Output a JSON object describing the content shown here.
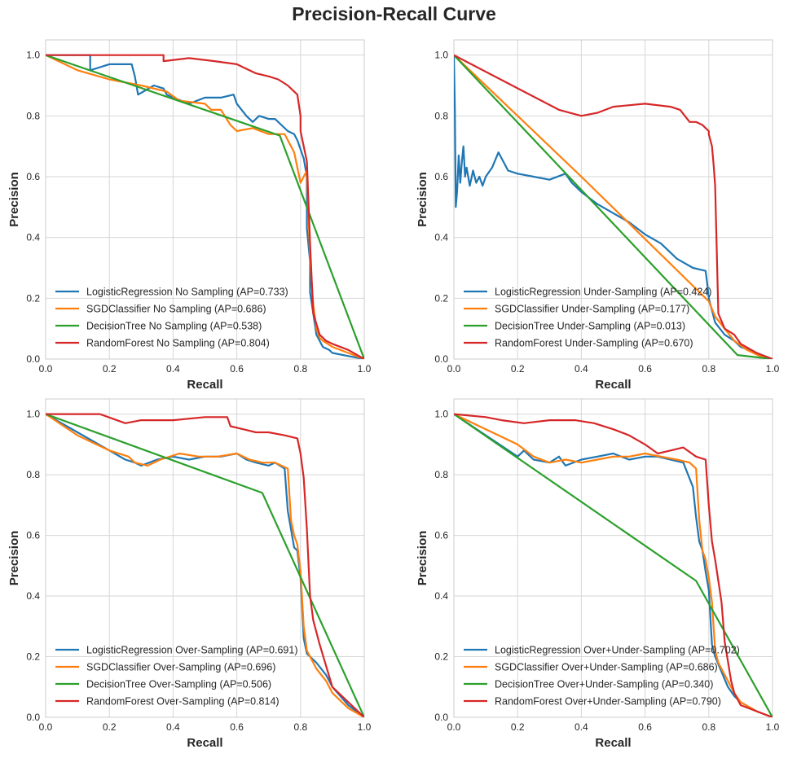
{
  "title": "Precision-Recall Curve",
  "colors": {
    "LogisticRegression": "#1f77b4",
    "SGDClassifier": "#ff7f0e",
    "DecisionTree": "#2ca02c",
    "RandomForest": "#d62728"
  },
  "chart_data": [
    {
      "type": "line",
      "xlabel": "Recall",
      "ylabel": "Precision",
      "xlim": [
        0,
        1
      ],
      "ylim": [
        0,
        1.05
      ],
      "xticks": [
        "0.0",
        "0.2",
        "0.4",
        "0.6",
        "0.8",
        "1.0"
      ],
      "yticks": [
        "0.0",
        "0.2",
        "0.4",
        "0.6",
        "0.8",
        "1.0"
      ],
      "grid": true,
      "legend": "lower-left",
      "series": [
        {
          "name": "LogisticRegression No Sampling (AP=0.733)",
          "color": "#1f77b4",
          "x": [
            0,
            0.14,
            0.14,
            0.2,
            0.27,
            0.28,
            0.29,
            0.34,
            0.37,
            0.38,
            0.4,
            0.45,
            0.5,
            0.55,
            0.59,
            0.6,
            0.63,
            0.65,
            0.67,
            0.7,
            0.72,
            0.74,
            0.76,
            0.78,
            0.79,
            0.81,
            0.82,
            0.82,
            0.83,
            0.83,
            0.84,
            0.85,
            0.87,
            0.89,
            0.9,
            0.95,
            1.0
          ],
          "y": [
            1.0,
            1.0,
            0.95,
            0.97,
            0.97,
            0.93,
            0.87,
            0.9,
            0.89,
            0.87,
            0.86,
            0.84,
            0.86,
            0.86,
            0.87,
            0.84,
            0.8,
            0.78,
            0.8,
            0.79,
            0.79,
            0.77,
            0.75,
            0.74,
            0.72,
            0.66,
            0.6,
            0.43,
            0.32,
            0.22,
            0.15,
            0.08,
            0.04,
            0.03,
            0.02,
            0.01,
            0.0
          ]
        },
        {
          "name": "SGDClassifier No Sampling (AP=0.686)",
          "color": "#ff7f0e",
          "x": [
            0,
            0.1,
            0.2,
            0.3,
            0.38,
            0.42,
            0.5,
            0.52,
            0.55,
            0.58,
            0.6,
            0.65,
            0.7,
            0.75,
            0.78,
            0.8,
            0.82,
            0.83,
            0.84,
            0.85,
            0.86,
            0.87,
            0.9,
            0.95,
            1.0
          ],
          "y": [
            1.0,
            0.95,
            0.92,
            0.9,
            0.88,
            0.85,
            0.84,
            0.82,
            0.82,
            0.77,
            0.75,
            0.76,
            0.74,
            0.74,
            0.68,
            0.58,
            0.62,
            0.33,
            0.18,
            0.1,
            0.07,
            0.06,
            0.04,
            0.02,
            0.0
          ]
        },
        {
          "name": "DecisionTree No Sampling (AP=0.538)",
          "color": "#2ca02c",
          "x": [
            0,
            0.735,
            1.0
          ],
          "y": [
            1.0,
            0.735,
            0.0
          ]
        },
        {
          "name": "RandomForest No Sampling (AP=0.804)",
          "color": "#d62728",
          "x": [
            0,
            0.37,
            0.37,
            0.45,
            0.53,
            0.6,
            0.66,
            0.7,
            0.73,
            0.76,
            0.79,
            0.8,
            0.8,
            0.82,
            0.83,
            0.84,
            0.86,
            0.88,
            0.9,
            0.95,
            1.0
          ],
          "y": [
            1.0,
            1.0,
            0.98,
            0.99,
            0.98,
            0.97,
            0.94,
            0.93,
            0.92,
            0.9,
            0.87,
            0.8,
            0.75,
            0.65,
            0.38,
            0.15,
            0.08,
            0.06,
            0.05,
            0.03,
            0.0
          ]
        }
      ]
    },
    {
      "type": "line",
      "xlabel": "Recall",
      "ylabel": "Precision",
      "xlim": [
        0,
        1
      ],
      "ylim": [
        0,
        1.05
      ],
      "xticks": [
        "0.0",
        "0.2",
        "0.4",
        "0.6",
        "0.8",
        "1.0"
      ],
      "yticks": [
        "0.0",
        "0.2",
        "0.4",
        "0.6",
        "0.8",
        "1.0"
      ],
      "grid": true,
      "legend": "lower-left",
      "series": [
        {
          "name": "LogisticRegression Under-Sampling (AP=0.424)",
          "color": "#1f77b4",
          "x": [
            0,
            0.003,
            0.006,
            0.01,
            0.015,
            0.02,
            0.025,
            0.03,
            0.035,
            0.04,
            0.05,
            0.06,
            0.07,
            0.08,
            0.09,
            0.1,
            0.12,
            0.14,
            0.16,
            0.17,
            0.2,
            0.25,
            0.3,
            0.35,
            0.37,
            0.4,
            0.45,
            0.5,
            0.55,
            0.6,
            0.65,
            0.7,
            0.75,
            0.79,
            0.795,
            0.8,
            0.82,
            0.85,
            0.88,
            0.9,
            0.95,
            1.0
          ],
          "y": [
            1.0,
            0.82,
            0.5,
            0.55,
            0.67,
            0.58,
            0.65,
            0.7,
            0.6,
            0.63,
            0.57,
            0.62,
            0.58,
            0.6,
            0.57,
            0.6,
            0.63,
            0.68,
            0.64,
            0.62,
            0.61,
            0.6,
            0.59,
            0.61,
            0.58,
            0.55,
            0.51,
            0.48,
            0.45,
            0.41,
            0.38,
            0.33,
            0.3,
            0.29,
            0.25,
            0.2,
            0.12,
            0.08,
            0.06,
            0.04,
            0.02,
            0.0
          ]
        },
        {
          "name": "SGDClassifier Under-Sampling (AP=0.177)",
          "color": "#ff7f0e",
          "x": [
            0,
            0.4,
            0.8,
            0.82,
            0.85,
            0.88,
            0.92,
            0.96,
            1.0
          ],
          "y": [
            1.0,
            0.6,
            0.19,
            0.14,
            0.1,
            0.06,
            0.03,
            0.01,
            0.0
          ]
        },
        {
          "name": "DecisionTree Under-Sampling (AP=0.013)",
          "color": "#2ca02c",
          "x": [
            0,
            0.89,
            1.0
          ],
          "y": [
            1.0,
            0.013,
            0.0
          ]
        },
        {
          "name": "RandomForest Under-Sampling (AP=0.670)",
          "color": "#d62728",
          "x": [
            0,
            0.33,
            0.4,
            0.45,
            0.5,
            0.6,
            0.68,
            0.71,
            0.74,
            0.76,
            0.78,
            0.79,
            0.8,
            0.8,
            0.81,
            0.815,
            0.82,
            0.83,
            0.85,
            0.88,
            0.9,
            0.95,
            1.0
          ],
          "y": [
            1.0,
            0.82,
            0.8,
            0.81,
            0.83,
            0.84,
            0.83,
            0.82,
            0.78,
            0.78,
            0.77,
            0.76,
            0.75,
            0.74,
            0.7,
            0.64,
            0.57,
            0.15,
            0.1,
            0.08,
            0.05,
            0.02,
            0.0
          ]
        }
      ]
    },
    {
      "type": "line",
      "xlabel": "Recall",
      "ylabel": "Precision",
      "xlim": [
        0,
        1
      ],
      "ylim": [
        0,
        1.05
      ],
      "xticks": [
        "0.0",
        "0.2",
        "0.4",
        "0.6",
        "0.8",
        "1.0"
      ],
      "yticks": [
        "0.0",
        "0.2",
        "0.4",
        "0.6",
        "0.8",
        "1.0"
      ],
      "grid": true,
      "legend": "lower-left",
      "series": [
        {
          "name": "LogisticRegression Over-Sampling (AP=0.691)",
          "color": "#1f77b4",
          "x": [
            0,
            0.1,
            0.2,
            0.25,
            0.28,
            0.3,
            0.35,
            0.4,
            0.45,
            0.5,
            0.55,
            0.6,
            0.63,
            0.66,
            0.7,
            0.72,
            0.75,
            0.76,
            0.77,
            0.78,
            0.79,
            0.8,
            0.81,
            0.82,
            0.83,
            0.85,
            0.88,
            0.9,
            0.95,
            1.0
          ],
          "y": [
            1.0,
            0.94,
            0.88,
            0.85,
            0.84,
            0.83,
            0.85,
            0.86,
            0.85,
            0.86,
            0.86,
            0.87,
            0.85,
            0.84,
            0.83,
            0.84,
            0.82,
            0.68,
            0.62,
            0.56,
            0.55,
            0.46,
            0.26,
            0.21,
            0.2,
            0.18,
            0.14,
            0.1,
            0.04,
            0.0
          ]
        },
        {
          "name": "SGDClassifier Over-Sampling (AP=0.696)",
          "color": "#ff7f0e",
          "x": [
            0,
            0.1,
            0.2,
            0.26,
            0.28,
            0.32,
            0.36,
            0.42,
            0.48,
            0.54,
            0.6,
            0.64,
            0.68,
            0.72,
            0.74,
            0.76,
            0.77,
            0.78,
            0.79,
            0.8,
            0.81,
            0.82,
            0.85,
            0.88,
            0.9,
            0.95,
            1.0
          ],
          "y": [
            1.0,
            0.93,
            0.88,
            0.86,
            0.84,
            0.83,
            0.85,
            0.87,
            0.86,
            0.86,
            0.87,
            0.85,
            0.84,
            0.84,
            0.83,
            0.82,
            0.65,
            0.6,
            0.57,
            0.48,
            0.3,
            0.22,
            0.16,
            0.12,
            0.08,
            0.03,
            0.0
          ]
        },
        {
          "name": "DecisionTree Over-Sampling (AP=0.506)",
          "color": "#2ca02c",
          "x": [
            0,
            0.68,
            1.0
          ],
          "y": [
            1.0,
            0.74,
            0.0
          ]
        },
        {
          "name": "RandomForest Over-Sampling (AP=0.814)",
          "color": "#d62728",
          "x": [
            0,
            0.17,
            0.25,
            0.3,
            0.4,
            0.5,
            0.57,
            0.58,
            0.62,
            0.66,
            0.7,
            0.75,
            0.79,
            0.8,
            0.81,
            0.82,
            0.83,
            0.84,
            0.86,
            0.88,
            0.9,
            0.95,
            1.0
          ],
          "y": [
            1.0,
            1.0,
            0.97,
            0.98,
            0.98,
            0.99,
            0.99,
            0.96,
            0.95,
            0.94,
            0.94,
            0.93,
            0.92,
            0.87,
            0.79,
            0.62,
            0.4,
            0.32,
            0.24,
            0.17,
            0.1,
            0.05,
            0.0
          ]
        }
      ]
    },
    {
      "type": "line",
      "xlabel": "Recall",
      "ylabel": "Precision",
      "xlim": [
        0,
        1
      ],
      "ylim": [
        0,
        1.05
      ],
      "xticks": [
        "0.0",
        "0.2",
        "0.4",
        "0.6",
        "0.8",
        "1.0"
      ],
      "yticks": [
        "0.0",
        "0.2",
        "0.4",
        "0.6",
        "0.8",
        "1.0"
      ],
      "grid": true,
      "legend": "lower-left",
      "series": [
        {
          "name": "LogisticRegression Over+Under-Sampling (AP=0.702)",
          "color": "#1f77b4",
          "x": [
            0,
            0.1,
            0.2,
            0.22,
            0.25,
            0.3,
            0.33,
            0.35,
            0.4,
            0.45,
            0.5,
            0.55,
            0.6,
            0.64,
            0.68,
            0.72,
            0.75,
            0.76,
            0.77,
            0.78,
            0.79,
            0.8,
            0.81,
            0.82,
            0.84,
            0.86,
            0.88,
            0.9,
            0.95,
            1.0
          ],
          "y": [
            1.0,
            0.93,
            0.86,
            0.88,
            0.85,
            0.84,
            0.86,
            0.83,
            0.85,
            0.86,
            0.87,
            0.85,
            0.86,
            0.86,
            0.85,
            0.84,
            0.76,
            0.66,
            0.58,
            0.55,
            0.48,
            0.42,
            0.24,
            0.2,
            0.15,
            0.1,
            0.07,
            0.05,
            0.02,
            0.0
          ]
        },
        {
          "name": "SGDClassifier Over+Under-Sampling (AP=0.686)",
          "color": "#ff7f0e",
          "x": [
            0,
            0.1,
            0.2,
            0.25,
            0.3,
            0.35,
            0.4,
            0.45,
            0.5,
            0.55,
            0.6,
            0.65,
            0.7,
            0.74,
            0.76,
            0.77,
            0.78,
            0.79,
            0.8,
            0.81,
            0.82,
            0.83,
            0.85,
            0.88,
            0.9,
            0.95,
            1.0
          ],
          "y": [
            1.0,
            0.95,
            0.9,
            0.86,
            0.84,
            0.85,
            0.84,
            0.85,
            0.86,
            0.86,
            0.87,
            0.86,
            0.85,
            0.84,
            0.82,
            0.65,
            0.55,
            0.52,
            0.46,
            0.38,
            0.22,
            0.18,
            0.14,
            0.08,
            0.05,
            0.02,
            0.0
          ]
        },
        {
          "name": "DecisionTree Over+Under-Sampling (AP=0.340)",
          "color": "#2ca02c",
          "x": [
            0,
            0.76,
            1.0
          ],
          "y": [
            1.0,
            0.45,
            0.0
          ]
        },
        {
          "name": "RandomForest Over+Under-Sampling (AP=0.790)",
          "color": "#d62728",
          "x": [
            0,
            0.1,
            0.15,
            0.22,
            0.3,
            0.38,
            0.44,
            0.5,
            0.55,
            0.6,
            0.64,
            0.68,
            0.72,
            0.76,
            0.79,
            0.8,
            0.81,
            0.82,
            0.83,
            0.84,
            0.85,
            0.87,
            0.88,
            0.9,
            0.95,
            1.0
          ],
          "y": [
            1.0,
            0.99,
            0.98,
            0.97,
            0.98,
            0.98,
            0.97,
            0.95,
            0.93,
            0.9,
            0.87,
            0.88,
            0.89,
            0.86,
            0.85,
            0.7,
            0.58,
            0.52,
            0.45,
            0.38,
            0.25,
            0.12,
            0.08,
            0.04,
            0.02,
            0.0
          ]
        }
      ]
    }
  ]
}
